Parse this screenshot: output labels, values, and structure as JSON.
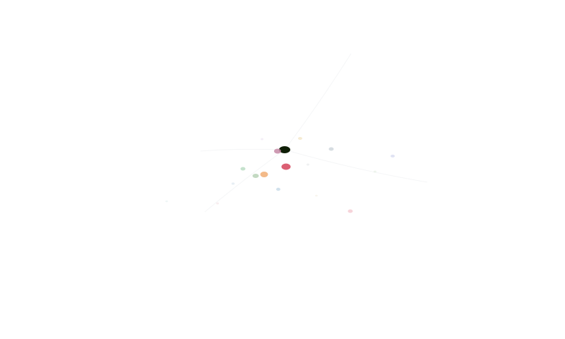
{
  "scene": {
    "background_color": "#ffffff",
    "bodies": [
      {
        "name": "central-dark-body",
        "color": "#0f1f07",
        "opacity": 1.0
      },
      {
        "name": "red-body",
        "color": "#d9566b",
        "opacity": 0.95
      },
      {
        "name": "mauve-body",
        "color": "#c68aa6",
        "opacity": 0.85
      },
      {
        "name": "orange-body",
        "color": "#f2b27c",
        "opacity": 0.9
      },
      {
        "name": "sage-body",
        "color": "#b8d2b7",
        "opacity": 0.85
      },
      {
        "name": "mint-body",
        "color": "#b6dbc0",
        "opacity": 0.8
      },
      {
        "name": "grey-body",
        "color": "#cfd6dc",
        "opacity": 0.85
      },
      {
        "name": "pink-body",
        "color": "#f4ccd4",
        "opacity": 0.85
      },
      {
        "name": "lavender-body",
        "color": "#d8dcf0",
        "opacity": 0.8
      },
      {
        "name": "pale-blue-body",
        "color": "#c9dce9",
        "opacity": 0.85
      },
      {
        "name": "cream-body",
        "color": "#f3e6c7",
        "opacity": 0.8
      },
      {
        "name": "faint-blue-body",
        "color": "#dde8f0",
        "opacity": 0.7
      },
      {
        "name": "faint-green-body",
        "color": "#e3eee1",
        "opacity": 0.6
      },
      {
        "name": "faint-pink-body",
        "color": "#f3e3e6",
        "opacity": 0.6
      },
      {
        "name": "faint-grey-body",
        "color": "#e6e8ea",
        "opacity": 0.6
      },
      {
        "name": "faint-lilac-body",
        "color": "#ece4f1",
        "opacity": 0.6
      },
      {
        "name": "faint-cream-body",
        "color": "#f4efe2",
        "opacity": 0.6
      },
      {
        "name": "faint-teal-body",
        "color": "#e1efef",
        "opacity": 0.55
      }
    ],
    "trail_color": "#eef0f2"
  }
}
